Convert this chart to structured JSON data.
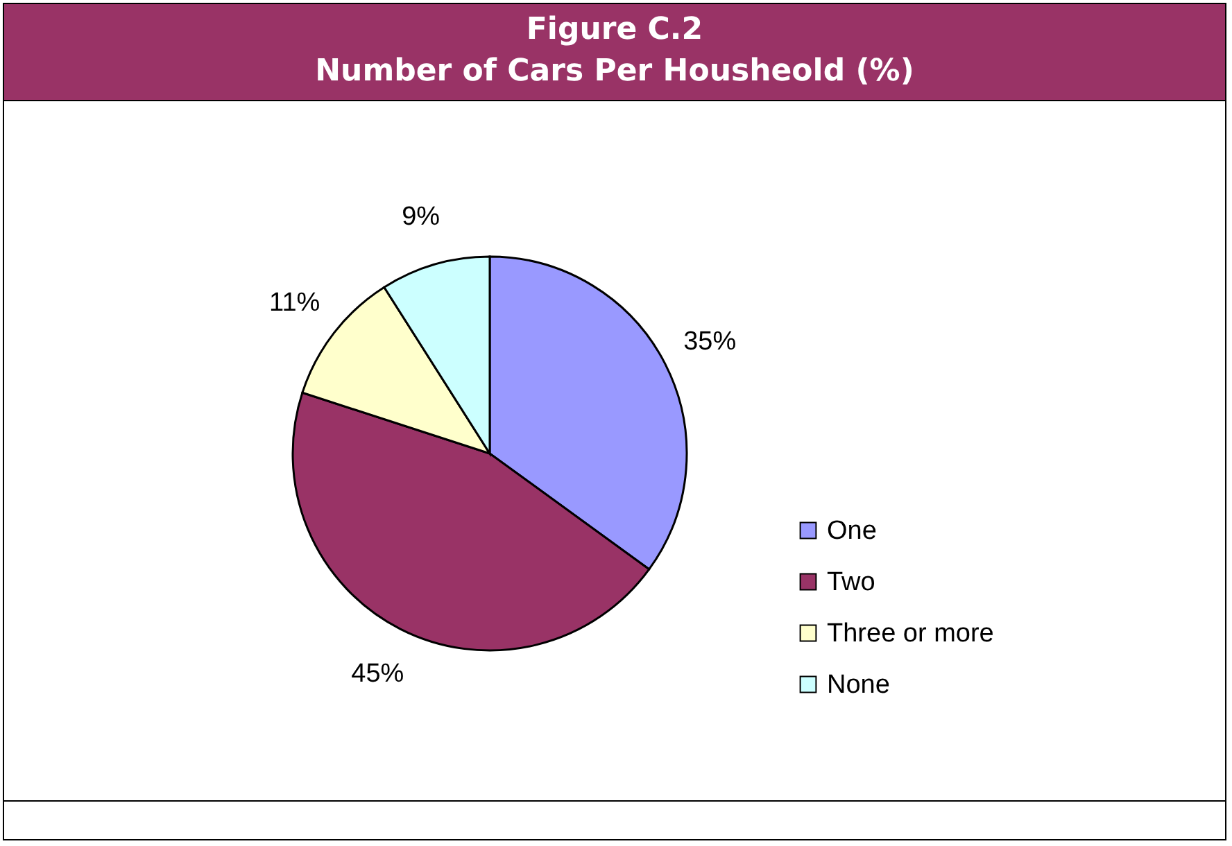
{
  "chart_data": {
    "type": "pie",
    "title": "Figure C.2",
    "subtitle": "Number of Cars Per Housheold (%)",
    "categories": [
      "One",
      "Two",
      "Three or more",
      "None"
    ],
    "values": [
      35,
      45,
      11,
      9
    ],
    "colors": [
      "#9999ff",
      "#993366",
      "#ffffcc",
      "#ccffff"
    ],
    "value_labels": [
      "35%",
      "45%",
      "11%",
      "9%"
    ],
    "legend": "right"
  }
}
